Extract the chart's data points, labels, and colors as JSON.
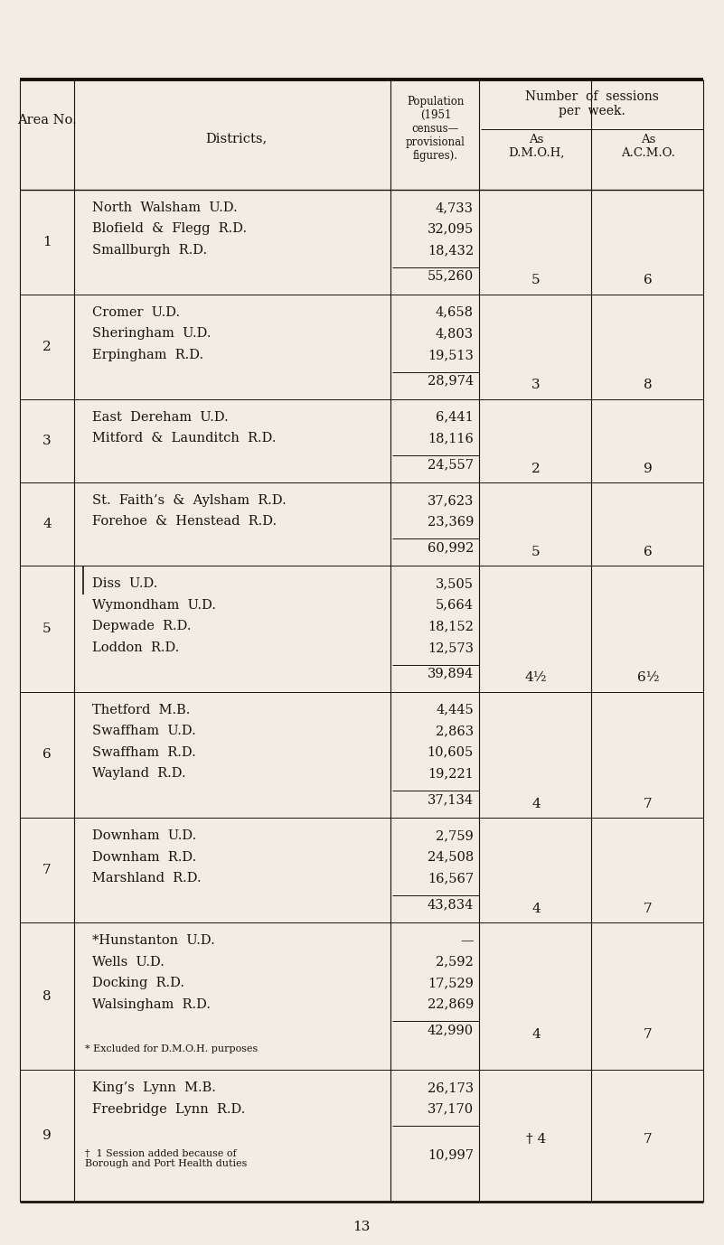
{
  "bg_color": "#f2ede3",
  "text_color": "#1a1208",
  "page_number": "13",
  "rows": [
    {
      "area": "1",
      "districts": [
        "North  Walsham  U.D.",
        "Blofield  &  Flegg  R.D.",
        "Smallburgh  R.D."
      ],
      "populations": [
        "4,733",
        "32,095",
        "18,432"
      ],
      "total": "55,260",
      "dmoh": "5",
      "acmo": "6",
      "n_lines": 3
    },
    {
      "area": "2",
      "districts": [
        "Cromer  U.D.",
        "Sheringham  U.D.",
        "Erpingham  R.D."
      ],
      "populations": [
        "4,658",
        "4,803",
        "19,513"
      ],
      "total": "28,974",
      "dmoh": "3",
      "acmo": "8",
      "n_lines": 3
    },
    {
      "area": "3",
      "districts": [
        "East  Dereham  U.D.",
        "Mitford  &  Launditch  R.D."
      ],
      "populations": [
        "6,441",
        "18,116"
      ],
      "total": "24,557",
      "dmoh": "2",
      "acmo": "9",
      "n_lines": 2
    },
    {
      "area": "4",
      "districts": [
        "St.  Faith’s  &  Aylsham  R.D.",
        "Forehoe  &  Henstead  R.D."
      ],
      "populations": [
        "37,623",
        "23,369"
      ],
      "total": "60,992",
      "dmoh": "5",
      "acmo": "6",
      "n_lines": 2
    },
    {
      "area": "5",
      "districts": [
        "Diss  U.D.",
        "Wymondham  U.D.",
        "Depwade  R.D.",
        "Loddon  R.D."
      ],
      "populations": [
        "3,505",
        "5,664",
        "18,152",
        "12,573"
      ],
      "total": "39,894",
      "dmoh": "4½",
      "acmo": "6½",
      "n_lines": 4,
      "diss_bar": true
    },
    {
      "area": "6",
      "districts": [
        "Thetford  M.B.",
        "Swaffham  U.D.",
        "Swaffham  R.D.",
        "Wayland  R.D."
      ],
      "populations": [
        "4,445",
        "2,863",
        "10,605",
        "19,221"
      ],
      "total": "37,134",
      "dmoh": "4",
      "acmo": "7",
      "n_lines": 4
    },
    {
      "area": "7",
      "districts": [
        "Downham  U.D.",
        "Downham  R.D.",
        "Marshland  R.D."
      ],
      "populations": [
        "2,759",
        "24,508",
        "16,567"
      ],
      "total": "43,834",
      "dmoh": "4",
      "acmo": "7",
      "n_lines": 3
    },
    {
      "area": "8",
      "districts": [
        "*Hunstanton  U.D.",
        "Wells  U.D.",
        "Docking  R.D.",
        "Walsingham  R.D."
      ],
      "populations": [
        "—",
        "2,592",
        "17,529",
        "22,869"
      ],
      "total": "42,990",
      "dmoh": "4",
      "acmo": "7",
      "n_lines": 4,
      "footnote8": "* Excluded for D.M.O.H. purposes"
    },
    {
      "area": "9",
      "districts": [
        "King’s  Lynn  M.B.",
        "Freebridge  Lynn  R.D."
      ],
      "populations": [
        "26,173",
        "37,170"
      ],
      "total": "",
      "dmoh": "† 4",
      "acmo": "7",
      "n_lines": 2,
      "footnote9_pop": "10,997",
      "footnote9_text": "†  1 Session added because of\nBorough and Port Health duties"
    }
  ]
}
